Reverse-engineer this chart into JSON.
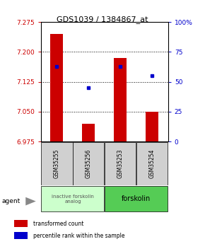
{
  "title": "GDS1039 / 1384867_at",
  "samples": [
    "GSM35255",
    "GSM35256",
    "GSM35253",
    "GSM35254"
  ],
  "bar_values": [
    7.245,
    7.02,
    7.185,
    7.05
  ],
  "bar_base": 6.975,
  "dot_percentiles": [
    63,
    45,
    63,
    55
  ],
  "ylim_left": [
    6.975,
    7.275
  ],
  "ylim_right": [
    0,
    100
  ],
  "yticks_left": [
    6.975,
    7.05,
    7.125,
    7.2,
    7.275
  ],
  "yticks_right": [
    0,
    25,
    50,
    75,
    100
  ],
  "bar_color": "#cc0000",
  "dot_color": "#0000cc",
  "group1_samples": [
    0,
    1
  ],
  "group2_samples": [
    2,
    3
  ],
  "group1_label": "inactive forskolin\nanalog",
  "group2_label": "forskolin",
  "group1_color": "#ccffcc",
  "group2_color": "#55cc55",
  "agent_label": "agent",
  "legend1_label": "transformed count",
  "legend2_label": "percentile rank within the sample",
  "tick_color_left": "#cc0000",
  "tick_color_right": "#0000cc"
}
